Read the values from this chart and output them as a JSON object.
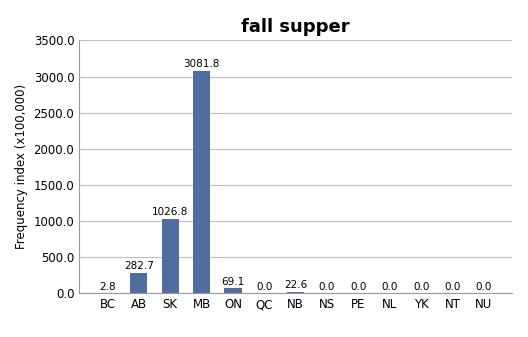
{
  "title": "fall supper",
  "categories": [
    "BC",
    "AB",
    "SK",
    "MB",
    "ON",
    "QC",
    "NB",
    "NS",
    "PE",
    "NL",
    "YK",
    "NT",
    "NU"
  ],
  "values": [
    2.8,
    282.7,
    1026.8,
    3081.8,
    69.1,
    0.0,
    22.6,
    0.0,
    0.0,
    0.0,
    0.0,
    0.0,
    0.0
  ],
  "bar_color": "#4f6d9e",
  "ylabel": "Frequency index (x100,000)",
  "ylim": [
    0,
    3500
  ],
  "yticks": [
    0,
    500,
    1000,
    1500,
    2000,
    2500,
    3000,
    3500
  ],
  "title_fontsize": 13,
  "label_fontsize": 8.5,
  "tick_fontsize": 8.5,
  "bar_label_fontsize": 7.5,
  "background_color": "#ffffff",
  "grid_color": "#c0c0c0"
}
